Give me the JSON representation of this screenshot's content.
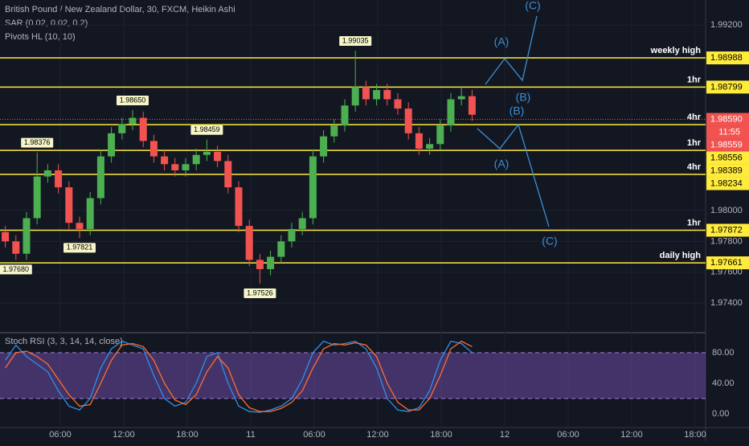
{
  "chart_data": {
    "type": "candlestick",
    "title": "British Pound / New Zealand Dollar, 30, FXCM, Heikin Ashi",
    "indicators": [
      "SAR (0.02, 0.02, 0.2)",
      "Pivots HL (10, 10)"
    ],
    "up_color": "#4caf50",
    "down_color": "#f05350",
    "level_color": "#ffeb3b",
    "open": [
      1.9786,
      1.978,
      1.9772,
      1.9795,
      1.9822,
      1.9826,
      1.9815,
      1.9792,
      1.9788,
      1.9808,
      1.9835,
      1.985,
      1.9856,
      1.986,
      1.9845,
      1.9835,
      1.983,
      1.9826,
      1.983,
      1.9836,
      1.9838,
      1.9832,
      1.9815,
      1.979,
      1.9768,
      1.9762,
      1.977,
      1.978,
      1.9788,
      1.9795,
      1.9835,
      1.9848,
      1.9855,
      1.9868,
      1.988,
      1.9872,
      1.9878,
      1.9872,
      1.9866,
      1.985,
      1.984,
      1.9843,
      1.9855,
      1.9872,
      1.9874
    ],
    "high": [
      1.979,
      1.9784,
      1.9799,
      1.98376,
      1.983,
      1.983,
      1.9819,
      1.9796,
      1.9812,
      1.9839,
      1.9854,
      1.986,
      1.9865,
      1.9864,
      1.9849,
      1.9839,
      1.9834,
      1.9834,
      1.984,
      1.98459,
      1.9842,
      1.9836,
      1.9819,
      1.9794,
      1.9772,
      1.9774,
      1.9784,
      1.9792,
      1.9799,
      1.9839,
      1.9852,
      1.9859,
      1.9872,
      1.99035,
      1.9884,
      1.9882,
      1.9882,
      1.9876,
      1.987,
      1.9854,
      1.9847,
      1.9859,
      1.9876,
      1.988,
      1.9878
    ],
    "low": [
      1.9776,
      1.9768,
      1.9768,
      1.9791,
      1.9818,
      1.9811,
      1.9788,
      1.97821,
      1.9784,
      1.9804,
      1.9831,
      1.9846,
      1.9852,
      1.9841,
      1.9831,
      1.9826,
      1.9822,
      1.9822,
      1.9826,
      1.9832,
      1.9828,
      1.9811,
      1.9786,
      1.9764,
      1.97526,
      1.9758,
      1.9766,
      1.9776,
      1.9784,
      1.9791,
      1.9831,
      1.9844,
      1.9851,
      1.9864,
      1.9868,
      1.9868,
      1.9868,
      1.9862,
      1.9846,
      1.9836,
      1.9836,
      1.9839,
      1.9851,
      1.9868,
      1.9858
    ],
    "close": [
      1.978,
      1.9772,
      1.9795,
      1.9822,
      1.9826,
      1.9815,
      1.9792,
      1.9788,
      1.9808,
      1.9835,
      1.985,
      1.9856,
      1.986,
      1.9845,
      1.9835,
      1.983,
      1.9826,
      1.983,
      1.9836,
      1.9838,
      1.9832,
      1.9815,
      1.979,
      1.9768,
      1.9762,
      1.977,
      1.978,
      1.9788,
      1.9795,
      1.9835,
      1.9848,
      1.9855,
      1.9868,
      1.988,
      1.9872,
      1.9878,
      1.9872,
      1.9866,
      1.985,
      1.984,
      1.9843,
      1.9855,
      1.9872,
      1.9874,
      1.9862
    ],
    "high_labels": [
      null,
      null,
      null,
      "1.98376",
      null,
      null,
      null,
      null,
      null,
      null,
      null,
      null,
      "1.98650",
      null,
      null,
      null,
      null,
      null,
      null,
      "1.98459",
      null,
      null,
      null,
      null,
      null,
      null,
      null,
      null,
      null,
      null,
      null,
      null,
      null,
      "1.99035",
      null,
      null,
      null,
      null,
      null,
      null,
      null,
      null,
      null,
      null,
      null
    ],
    "low_labels": [
      null,
      "1.97680",
      null,
      null,
      null,
      null,
      null,
      "1.97821",
      null,
      null,
      null,
      null,
      null,
      null,
      null,
      null,
      null,
      null,
      null,
      null,
      null,
      null,
      null,
      null,
      "1.97526",
      null,
      null,
      null,
      null,
      null,
      null,
      null,
      null,
      null,
      null,
      null,
      null,
      null,
      null,
      null,
      null,
      null,
      null,
      null,
      null
    ],
    "ylim": [
      1.97219,
      1.99363
    ],
    "yticks": [
      {
        "value": 1.974,
        "label": "1.97400"
      },
      {
        "value": 1.976,
        "label": "1.97600"
      },
      {
        "value": 1.978,
        "label": "1.97800"
      },
      {
        "value": 1.98,
        "label": "1.98000"
      },
      {
        "value": 1.992,
        "label": "1.99200"
      }
    ],
    "x_labels": [
      "06:00",
      "12:00",
      "18:00",
      "11",
      "06:00",
      "12:00",
      "18:00",
      "12",
      "06:00",
      "12:00",
      "18:00"
    ],
    "levels": [
      {
        "name": "weekly high",
        "value": 1.98988,
        "label": "1.98988"
      },
      {
        "name": "1hr",
        "value": 1.98799,
        "label": "1.98799"
      },
      {
        "name": "4hr",
        "value": 1.98556,
        "label": "1.98556"
      },
      {
        "name": "1hr",
        "value": 1.98389,
        "label": "1.98389"
      },
      {
        "name": "4hr",
        "value": 1.98234,
        "label": "1.98234"
      },
      {
        "name": "1hr",
        "value": 1.97872,
        "label": "1.97872"
      },
      {
        "name": "daily high",
        "value": 1.97661,
        "label": "1.97661"
      }
    ],
    "last_price": {
      "value": 1.9859,
      "label": "1.98590"
    },
    "countdown": "11:55",
    "sar_price": {
      "value": 1.98559,
      "label": "1.98559"
    },
    "waves": {
      "upper": [
        "(A)",
        "(B)",
        "(C)"
      ],
      "lower": [
        "(A)",
        "(B)",
        "(C)"
      ]
    },
    "oscillator": {
      "title": "Stoch RSI (3, 3, 14, 14, close)",
      "ylim": [
        -18,
        102
      ],
      "yticks": [
        {
          "value": 0,
          "label": "0.00"
        },
        {
          "value": 40,
          "label": "40.00"
        },
        {
          "value": 80,
          "label": "80.00"
        }
      ],
      "band": [
        20,
        80
      ],
      "series": [
        {
          "color": "#2f8fe8",
          "values": [
            70,
            90,
            75,
            65,
            55,
            30,
            10,
            5,
            20,
            60,
            85,
            95,
            90,
            85,
            50,
            20,
            10,
            15,
            40,
            75,
            80,
            40,
            10,
            3,
            2,
            5,
            10,
            20,
            45,
            80,
            95,
            90,
            92,
            95,
            85,
            60,
            20,
            5,
            3,
            8,
            30,
            70,
            95,
            92,
            80
          ]
        },
        {
          "color": "#ff6d2e",
          "values": [
            60,
            80,
            82,
            75,
            65,
            45,
            25,
            10,
            12,
            40,
            70,
            90,
            92,
            88,
            70,
            40,
            18,
            12,
            25,
            55,
            75,
            60,
            25,
            8,
            3,
            3,
            7,
            15,
            30,
            60,
            85,
            92,
            90,
            93,
            90,
            75,
            40,
            15,
            5,
            5,
            20,
            50,
            85,
            95,
            88
          ]
        }
      ]
    }
  }
}
